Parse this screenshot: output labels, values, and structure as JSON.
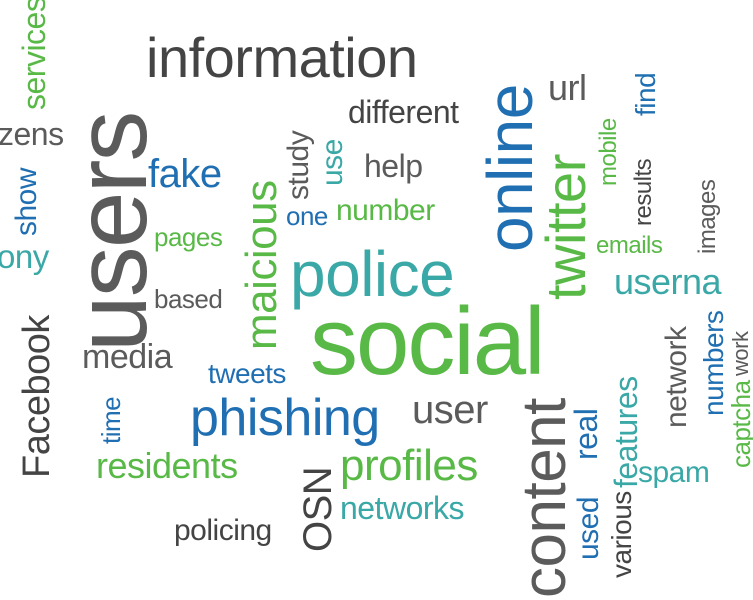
{
  "colors": {
    "green": "#59b947",
    "blue": "#1f6fb2",
    "teal": "#3aa8a6",
    "gray": "#5b5b5b",
    "dark": "#444444",
    "background": "#ffffff"
  },
  "words": {
    "services": "services",
    "zens": "zens",
    "show": "show",
    "ony": "ony",
    "facebook": "Facebook",
    "users": "users",
    "information": "information",
    "online": "online",
    "url": "url",
    "find": "find",
    "different": "different",
    "study": "study",
    "use": "use",
    "maicious": "maicious",
    "fake": "fake",
    "help": "help",
    "mobile": "mobile",
    "results": "results",
    "images": "images",
    "one": "one",
    "number": "number",
    "twitter": "twitter",
    "pages": "pages",
    "emails": "emails",
    "police": "police",
    "userna": "userna",
    "based": "based",
    "social": "social",
    "network": "network",
    "numbers": "numbers",
    "work": "work",
    "captcha": "captcha",
    "media": "media",
    "tweets": "tweets",
    "time": "time",
    "phishing": "phishing",
    "user": "user",
    "content": "content",
    "real": "real",
    "features": "features",
    "residents": "residents",
    "osn": "OSN",
    "profiles": "profiles",
    "used": "used",
    "various": "various",
    "spam": "spam",
    "policing": "policing",
    "networks": "networks"
  }
}
